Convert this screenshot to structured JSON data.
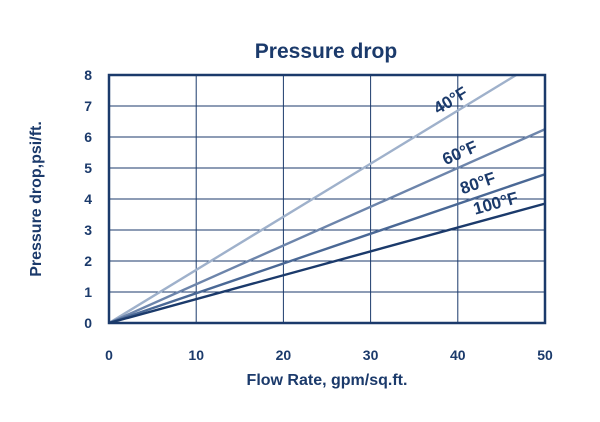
{
  "chart_data": {
    "type": "line",
    "title": "Pressure drop",
    "xlabel": "Flow Rate, gpm/sq.ft.",
    "ylabel": "Pressure drop,psi/ft.",
    "xlim": [
      0,
      50
    ],
    "ylim": [
      0,
      8
    ],
    "x_ticks": [
      "0",
      "10",
      "20",
      "30",
      "40",
      "50"
    ],
    "y_ticks": [
      "0",
      "1",
      "2",
      "3",
      "4",
      "5",
      "6",
      "7",
      "8"
    ],
    "grid": true,
    "series": [
      {
        "name": "40°F",
        "color": "#9fb1cb",
        "x": [
          0,
          46.7
        ],
        "y": [
          0,
          8.0
        ]
      },
      {
        "name": "60°F",
        "color": "#6d85ab",
        "x": [
          0,
          50
        ],
        "y": [
          0,
          6.25
        ]
      },
      {
        "name": "80°F",
        "color": "#4a6895",
        "x": [
          0,
          50
        ],
        "y": [
          0,
          4.8
        ]
      },
      {
        "name": "100°F",
        "color": "#1b3a6b",
        "x": [
          0,
          50
        ],
        "y": [
          0,
          3.85
        ]
      }
    ]
  }
}
